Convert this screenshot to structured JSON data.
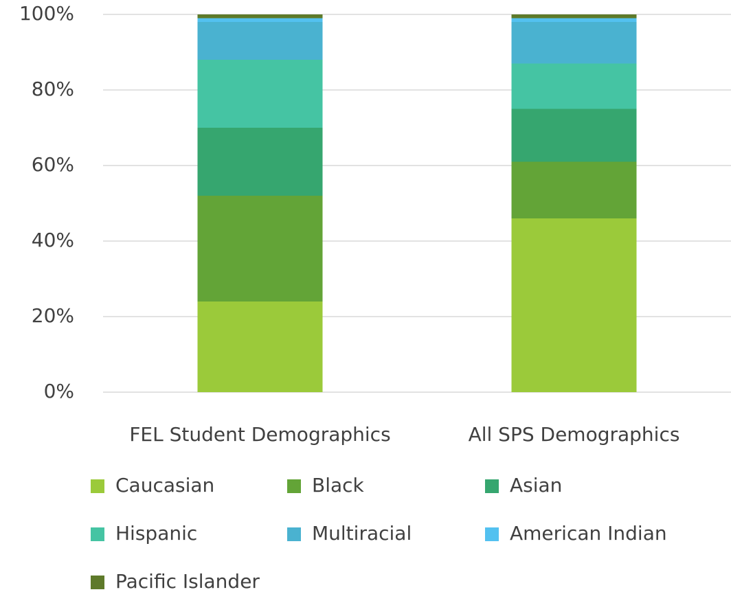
{
  "chart_data": {
    "type": "bar",
    "stacked": true,
    "categories": [
      "FEL Student Demographics",
      "All SPS Demographics"
    ],
    "series": [
      {
        "name": "Caucasian",
        "color": "#9bca3a",
        "values": [
          24,
          46
        ]
      },
      {
        "name": "Black",
        "color": "#63a437",
        "values": [
          28,
          15
        ]
      },
      {
        "name": "Asian",
        "color": "#36a66f",
        "values": [
          18,
          14
        ]
      },
      {
        "name": "Hispanic",
        "color": "#45c4a3",
        "values": [
          18,
          12
        ]
      },
      {
        "name": "Multiracial",
        "color": "#4ab2d0",
        "values": [
          10,
          11
        ]
      },
      {
        "name": "American Indian",
        "color": "#53c1f0",
        "values": [
          1,
          1
        ]
      },
      {
        "name": "Pacific Islander",
        "color": "#5e7a2a",
        "values": [
          1,
          1
        ]
      }
    ],
    "ylim": [
      0,
      100
    ],
    "yticks": [
      {
        "value": 0,
        "label": "0%"
      },
      {
        "value": 20,
        "label": "20%"
      },
      {
        "value": 40,
        "label": "40%"
      },
      {
        "value": 60,
        "label": "60%"
      },
      {
        "value": 80,
        "label": "80%"
      },
      {
        "value": 100,
        "label": "100%"
      }
    ],
    "grid": true,
    "legend": "bottom"
  }
}
